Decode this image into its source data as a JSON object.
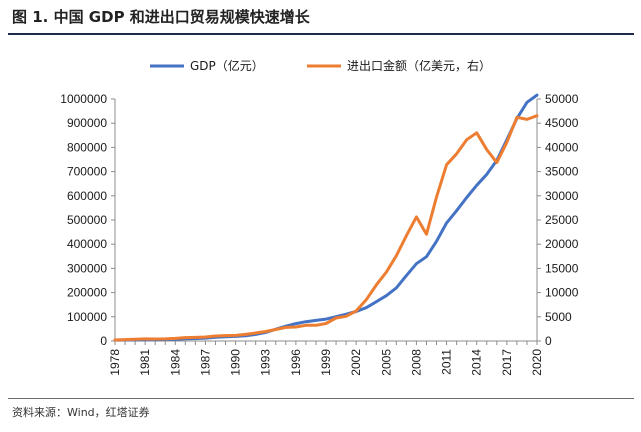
{
  "header": {
    "title": "图 1. 中国 GDP 和进出口贸易规模快速增长"
  },
  "footer": {
    "source": "资料来源：Wind，红塔证券"
  },
  "chart_data": {
    "type": "line",
    "title": "",
    "xlabel": "",
    "ylabel": "",
    "x": [
      1978,
      1979,
      1980,
      1981,
      1982,
      1983,
      1984,
      1985,
      1986,
      1987,
      1988,
      1989,
      1990,
      1991,
      1992,
      1993,
      1994,
      1995,
      1996,
      1997,
      1998,
      1999,
      2000,
      2001,
      2002,
      2003,
      2004,
      2005,
      2006,
      2007,
      2008,
      2009,
      2010,
      2011,
      2012,
      2013,
      2014,
      2015,
      2016,
      2017,
      2018,
      2019,
      2020
    ],
    "x_tick_labels": [
      "1978",
      "1981",
      "1984",
      "1987",
      "1990",
      "1993",
      "1996",
      "1999",
      "2002",
      "2005",
      "2008",
      "2011",
      "2014",
      "2017",
      "2020"
    ],
    "y_left": {
      "ylim": [
        0,
        1000000
      ],
      "ticks": [
        "0",
        "100000",
        "200000",
        "300000",
        "400000",
        "500000",
        "600000",
        "700000",
        "800000",
        "900000",
        "1000000"
      ]
    },
    "y_right": {
      "ylim": [
        0,
        50000
      ],
      "ticks": [
        "0",
        "5000",
        "10000",
        "15000",
        "20000",
        "25000",
        "30000",
        "35000",
        "40000",
        "45000",
        "50000"
      ]
    },
    "legend_position": "top",
    "series": [
      {
        "name": "GDP（亿元）",
        "axis": "left",
        "color": "#4472c4",
        "values": [
          3679,
          4101,
          4588,
          4936,
          5373,
          6021,
          7279,
          9099,
          10376,
          12175,
          15180,
          17180,
          18873,
          22006,
          27195,
          35673,
          48638,
          61340,
          71814,
          79715,
          85196,
          90564,
          100280,
          110863,
          121717,
          137422,
          161840,
          187319,
          219439,
          270092,
          319245,
          348518,
          412119,
          487940,
          538580,
          592963,
          643563,
          688858,
          746395,
          832036,
          919281,
          986515,
          1015986
        ]
      },
      {
        "name": "进出口金额（亿美元，右）",
        "axis": "right",
        "color": "#ed7d31",
        "values": [
          206,
          293,
          381,
          440,
          416,
          436,
          535,
          696,
          738,
          827,
          1028,
          1117,
          1154,
          1357,
          1655,
          1957,
          2366,
          2809,
          2899,
          3252,
          3240,
          3606,
          4743,
          5097,
          6208,
          8510,
          11546,
          14219,
          17604,
          21762,
          25633,
          22075,
          29740,
          36419,
          38671,
          41590,
          43015,
          39530,
          36856,
          41071,
          46224,
          45779,
          46559
        ]
      }
    ]
  }
}
